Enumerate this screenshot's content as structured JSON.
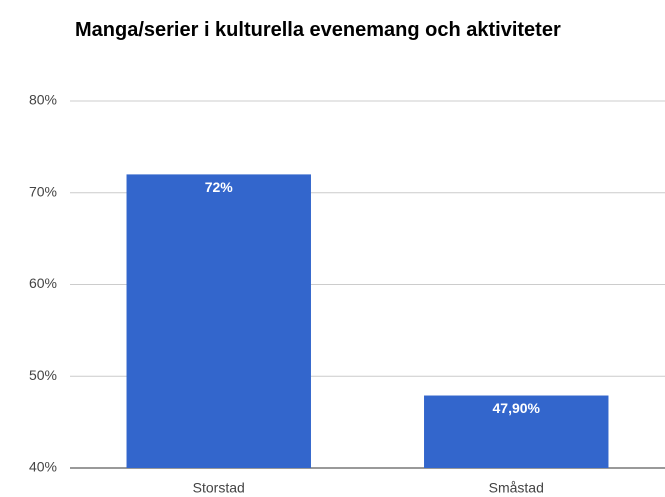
{
  "chart_data": {
    "type": "bar",
    "title": "Manga/serier i kulturella evenemang och aktiviteter",
    "categories": [
      "Storstad",
      "Småstad"
    ],
    "values": [
      72,
      47.9
    ],
    "value_labels": [
      "72%",
      "47,90%"
    ],
    "color": "#3366cc",
    "ylim": [
      40,
      80
    ],
    "yticks": [
      {
        "value": 40,
        "label": "40%"
      },
      {
        "value": 50,
        "label": "50%"
      },
      {
        "value": 60,
        "label": "60%"
      },
      {
        "value": 70,
        "label": "70%"
      },
      {
        "value": 80,
        "label": "80%"
      }
    ],
    "grid": true
  }
}
